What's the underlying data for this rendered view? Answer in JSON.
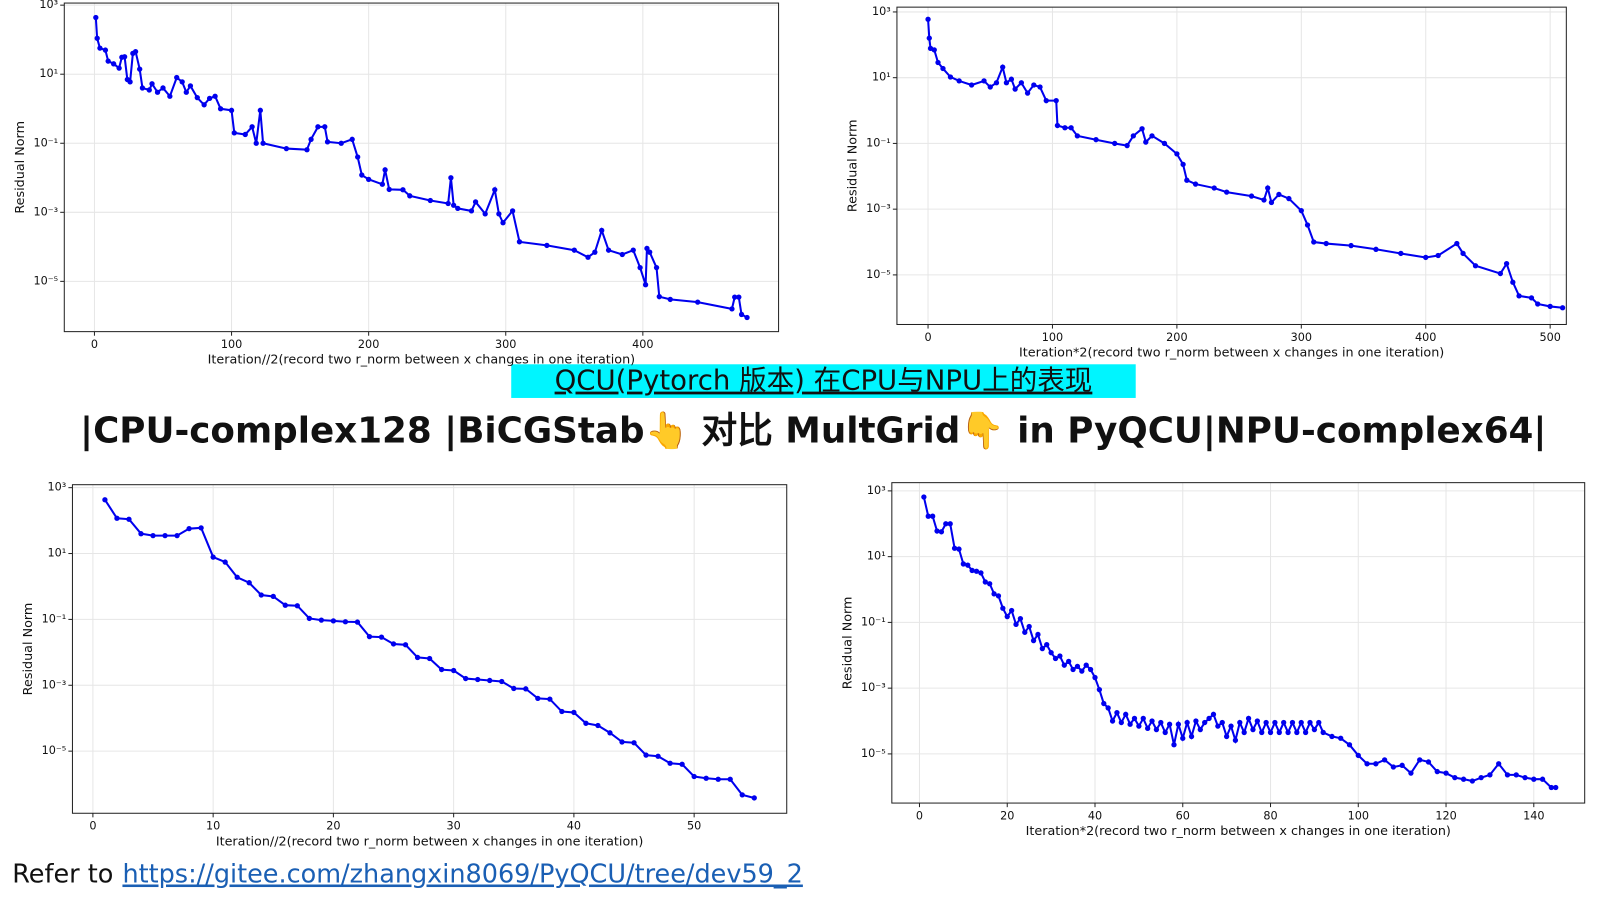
{
  "header": {
    "title": "QCU(Pytorch 版本) 在CPU与NPU上的表现",
    "subtitle": "|CPU-complex128 |BiCGStab👆 对比 MultGrid👇 in PyQCU|NPU-complex64|"
  },
  "footer": {
    "text": "Refer to",
    "link": "https://gitee.com/zhangxin8069/PyQCU/tree/dev59_2"
  },
  "chart_data": [
    {
      "type": "line",
      "xlabel": "Iteration//2(record two r_norm between x changes in one iteration)",
      "ylabel": "Residual Norm",
      "log_y": true,
      "grid": true,
      "color": "#0000ee",
      "xlim": [
        -22,
        499
      ],
      "xticks": [
        0,
        100,
        200,
        300,
        400
      ],
      "ylim": [
        3.5e-07,
        1150
      ],
      "yticks": [
        {
          "value": 1000,
          "label": "10³"
        },
        {
          "value": 10,
          "label": "10¹"
        },
        {
          "value": 0.1,
          "label": "10⁻¹"
        },
        {
          "value": 0.001,
          "label": "10⁻³"
        },
        {
          "value": 1e-05,
          "label": "10⁻⁵"
        }
      ],
      "x": [
        1,
        2,
        4,
        8,
        10,
        14,
        18,
        20,
        22,
        24,
        26,
        28,
        30,
        33,
        35,
        40,
        42,
        46,
        50,
        55,
        60,
        64,
        67,
        70,
        75,
        80,
        84,
        88,
        92,
        100,
        102,
        110,
        115,
        118,
        121,
        123,
        140,
        155,
        158,
        163,
        168,
        170,
        180,
        188,
        192,
        195,
        200,
        210,
        212,
        215,
        225,
        230,
        245,
        258,
        260,
        262,
        265,
        275,
        278,
        285,
        292,
        295,
        298,
        305,
        310,
        330,
        350,
        360,
        365,
        370,
        375,
        385,
        393,
        398,
        402,
        403,
        405,
        410,
        412,
        420,
        440,
        465,
        467,
        470,
        472,
        476
      ],
      "values": [
        440,
        110,
        57,
        50,
        24,
        20,
        15,
        31,
        32,
        7,
        6,
        40,
        45,
        14,
        4,
        3.5,
        5.3,
        3,
        4,
        2.3,
        8,
        6,
        3,
        4.6,
        2.1,
        1.3,
        2,
        2.3,
        1,
        0.9,
        0.2,
        0.18,
        0.3,
        0.1,
        0.9,
        0.1,
        0.07,
        0.065,
        0.13,
        0.3,
        0.3,
        0.11,
        0.1,
        0.13,
        0.04,
        0.012,
        0.009,
        0.0065,
        0.017,
        0.0046,
        0.0045,
        0.003,
        0.0022,
        0.0018,
        0.01,
        0.0016,
        0.0013,
        0.0011,
        0.002,
        0.0009,
        0.0045,
        0.0009,
        0.0005,
        0.0011,
        0.00014,
        0.00011,
        8e-05,
        5e-05,
        7e-05,
        0.0003,
        8e-05,
        6e-05,
        8e-05,
        2.5e-05,
        8e-06,
        9e-05,
        7e-05,
        2.5e-05,
        3.6e-06,
        3e-06,
        2.5e-06,
        1.6e-06,
        3.5e-06,
        3.5e-06,
        1.1e-06,
        9e-07
      ]
    },
    {
      "type": "line",
      "xlabel": "Iteration*2(record two r_norm between x changes in one iteration)",
      "ylabel": "Residual Norm",
      "log_y": true,
      "grid": true,
      "color": "#0000ee",
      "xlim": [
        -25,
        513
      ],
      "xticks": [
        0,
        100,
        200,
        300,
        400,
        500
      ],
      "ylim": [
        3.1e-07,
        1400
      ],
      "yticks": [
        {
          "value": 1000,
          "label": "10³"
        },
        {
          "value": 10,
          "label": "10¹"
        },
        {
          "value": 0.1,
          "label": "10⁻¹"
        },
        {
          "value": 0.001,
          "label": "10⁻³"
        },
        {
          "value": 1e-05,
          "label": "10⁻⁵"
        }
      ],
      "x": [
        0,
        1,
        2,
        5,
        8,
        12,
        18,
        25,
        35,
        45,
        50,
        55,
        60,
        63,
        67,
        70,
        75,
        80,
        85,
        90,
        95,
        103,
        104,
        110,
        115,
        120,
        135,
        150,
        160,
        165,
        172,
        175,
        180,
        190,
        200,
        205,
        208,
        215,
        230,
        240,
        260,
        270,
        273,
        276,
        282,
        290,
        300,
        305,
        310,
        320,
        340,
        360,
        380,
        400,
        410,
        425,
        430,
        440,
        460,
        465,
        470,
        475,
        485,
        490,
        500,
        510
      ],
      "values": [
        600,
        160,
        78,
        70,
        29,
        19,
        10.5,
        8,
        6,
        8,
        5.2,
        7,
        21,
        7,
        9,
        4.5,
        7,
        3.4,
        6,
        5.2,
        2,
        2,
        0.35,
        0.3,
        0.3,
        0.17,
        0.13,
        0.1,
        0.086,
        0.17,
        0.28,
        0.11,
        0.17,
        0.1,
        0.048,
        0.023,
        0.0076,
        0.0058,
        0.0044,
        0.0033,
        0.0025,
        0.0019,
        0.0044,
        0.0016,
        0.0028,
        0.0021,
        0.0009,
        0.00033,
        0.0001,
        9e-05,
        7.8e-05,
        6e-05,
        4.5e-05,
        3.4e-05,
        3.9e-05,
        9e-05,
        4.5e-05,
        1.9e-05,
        1.1e-05,
        2.2e-05,
        6e-06,
        2.3e-06,
        2e-06,
        1.3e-06,
        1.1e-06,
        1e-06
      ]
    },
    {
      "type": "line",
      "xlabel": "Iteration//2(record two r_norm between x changes in one iteration)",
      "ylabel": "Residual Norm",
      "log_y": true,
      "grid": true,
      "color": "#0000ee",
      "xlim": [
        -1.7,
        57.7
      ],
      "xticks": [
        0,
        10,
        20,
        30,
        40,
        50
      ],
      "ylim": [
        1.3e-07,
        1230
      ],
      "yticks": [
        {
          "value": 1000,
          "label": "10³"
        },
        {
          "value": 10,
          "label": "10¹"
        },
        {
          "value": 0.1,
          "label": "10⁻¹"
        },
        {
          "value": 0.001,
          "label": "10⁻³"
        },
        {
          "value": 1e-05,
          "label": "10⁻⁵"
        }
      ],
      "x": [
        1,
        2,
        3,
        4,
        5,
        6,
        7,
        8,
        9,
        10,
        11,
        12,
        13,
        14,
        15,
        16,
        17,
        18,
        19,
        20,
        21,
        22,
        23,
        24,
        25,
        26,
        27,
        28,
        29,
        30,
        31,
        32,
        33,
        34,
        35,
        36,
        37,
        38,
        39,
        40,
        41,
        42,
        43,
        44,
        45,
        46,
        47,
        48,
        49,
        50,
        51,
        52,
        53,
        54,
        55
      ],
      "values": [
        430,
        118,
        110,
        40,
        35,
        35,
        35,
        57,
        60,
        7.8,
        5.5,
        1.9,
        1.3,
        0.55,
        0.5,
        0.27,
        0.26,
        0.107,
        0.095,
        0.09,
        0.085,
        0.083,
        0.03,
        0.029,
        0.018,
        0.017,
        0.007,
        0.0065,
        0.003,
        0.0028,
        0.0016,
        0.0015,
        0.0014,
        0.0013,
        0.0008,
        0.00078,
        0.0004,
        0.00038,
        0.00016,
        0.00015,
        7e-05,
        6e-05,
        3.6e-05,
        1.9e-05,
        1.8e-05,
        7.6e-06,
        7e-06,
        4.3e-06,
        4e-06,
        1.7e-06,
        1.5e-06,
        1.4e-06,
        1.4e-06,
        4.7e-07,
        3.8e-07
      ]
    },
    {
      "type": "line",
      "xlabel": "Iteration*2(record two r_norm between x changes in one iteration)",
      "ylabel": "Residual Norm",
      "log_y": true,
      "grid": true,
      "color": "#0000ee",
      "xlim": [
        -6.3,
        151.6
      ],
      "xticks": [
        0,
        20,
        40,
        60,
        80,
        100,
        120,
        140
      ],
      "ylim": [
        3.2e-07,
        1780
      ],
      "yticks": [
        {
          "value": 1000,
          "label": "10³"
        },
        {
          "value": 10,
          "label": "10¹"
        },
        {
          "value": 0.1,
          "label": "10⁻¹"
        },
        {
          "value": 0.001,
          "label": "10⁻³"
        },
        {
          "value": 1e-05,
          "label": "10⁻⁵"
        }
      ],
      "x": [
        1,
        2,
        3,
        4,
        5,
        6,
        7,
        8,
        9,
        10,
        11,
        12,
        13,
        14,
        15,
        16,
        17,
        18,
        19,
        20,
        21,
        22,
        23,
        24,
        25,
        26,
        27,
        28,
        29,
        30,
        31,
        32,
        33,
        34,
        35,
        36,
        37,
        38,
        39,
        40,
        41,
        42,
        43,
        44,
        45,
        46,
        47,
        48,
        49,
        50,
        51,
        52,
        53,
        54,
        55,
        56,
        57,
        58,
        59,
        60,
        61,
        62,
        63,
        64,
        65,
        66,
        67,
        68,
        69,
        70,
        71,
        72,
        73,
        74,
        75,
        76,
        77,
        78,
        79,
        80,
        81,
        82,
        83,
        84,
        85,
        86,
        87,
        88,
        89,
        90,
        91,
        92,
        94,
        96,
        98,
        100,
        102,
        104,
        106,
        108,
        110,
        112,
        114,
        116,
        118,
        120,
        122,
        124,
        126,
        128,
        130,
        132,
        134,
        136,
        138,
        140,
        142,
        144,
        145
      ],
      "values": [
        650,
        170,
        170,
        60,
        57,
        100,
        100,
        18,
        17,
        6,
        5.5,
        3.8,
        3.6,
        3.2,
        1.7,
        1.5,
        0.74,
        0.64,
        0.27,
        0.15,
        0.23,
        0.087,
        0.13,
        0.05,
        0.075,
        0.028,
        0.043,
        0.016,
        0.021,
        0.012,
        0.008,
        0.0095,
        0.005,
        0.0065,
        0.0037,
        0.0046,
        0.0033,
        0.005,
        0.0037,
        0.0021,
        0.0009,
        0.00034,
        0.00025,
        0.0001,
        0.00018,
        9e-05,
        0.00016,
        8e-05,
        0.00012,
        7e-05,
        0.00012,
        6e-05,
        0.0001,
        5.5e-05,
        9e-05,
        4.5e-05,
        8e-05,
        1.9e-05,
        8e-05,
        3e-05,
        9e-05,
        3.4e-05,
        0.0001,
        5.5e-05,
        9e-05,
        0.00012,
        0.00016,
        7e-05,
        9e-05,
        3.4e-05,
        7e-05,
        2.6e-05,
        9e-05,
        4.5e-05,
        0.00012,
        5.5e-05,
        0.0001,
        4.5e-05,
        9e-05,
        4.5e-05,
        9e-05,
        4.5e-05,
        9e-05,
        4.5e-05,
        9e-05,
        4.5e-05,
        9e-05,
        4.5e-05,
        9e-05,
        5.5e-05,
        9e-05,
        4.5e-05,
        3.4e-05,
        3e-05,
        1.9e-05,
        9e-06,
        5e-06,
        5e-06,
        6.6e-06,
        4e-06,
        4.5e-06,
        2.6e-06,
        6.6e-06,
        5.7e-06,
        2.9e-06,
        2.6e-06,
        1.9e-06,
        1.7e-06,
        1.5e-06,
        1.9e-06,
        2.3e-06,
        5e-06,
        2.3e-06,
        2.3e-06,
        1.9e-06,
        1.7e-06,
        1.7e-06,
        9.5e-07,
        9.5e-07
      ]
    }
  ]
}
